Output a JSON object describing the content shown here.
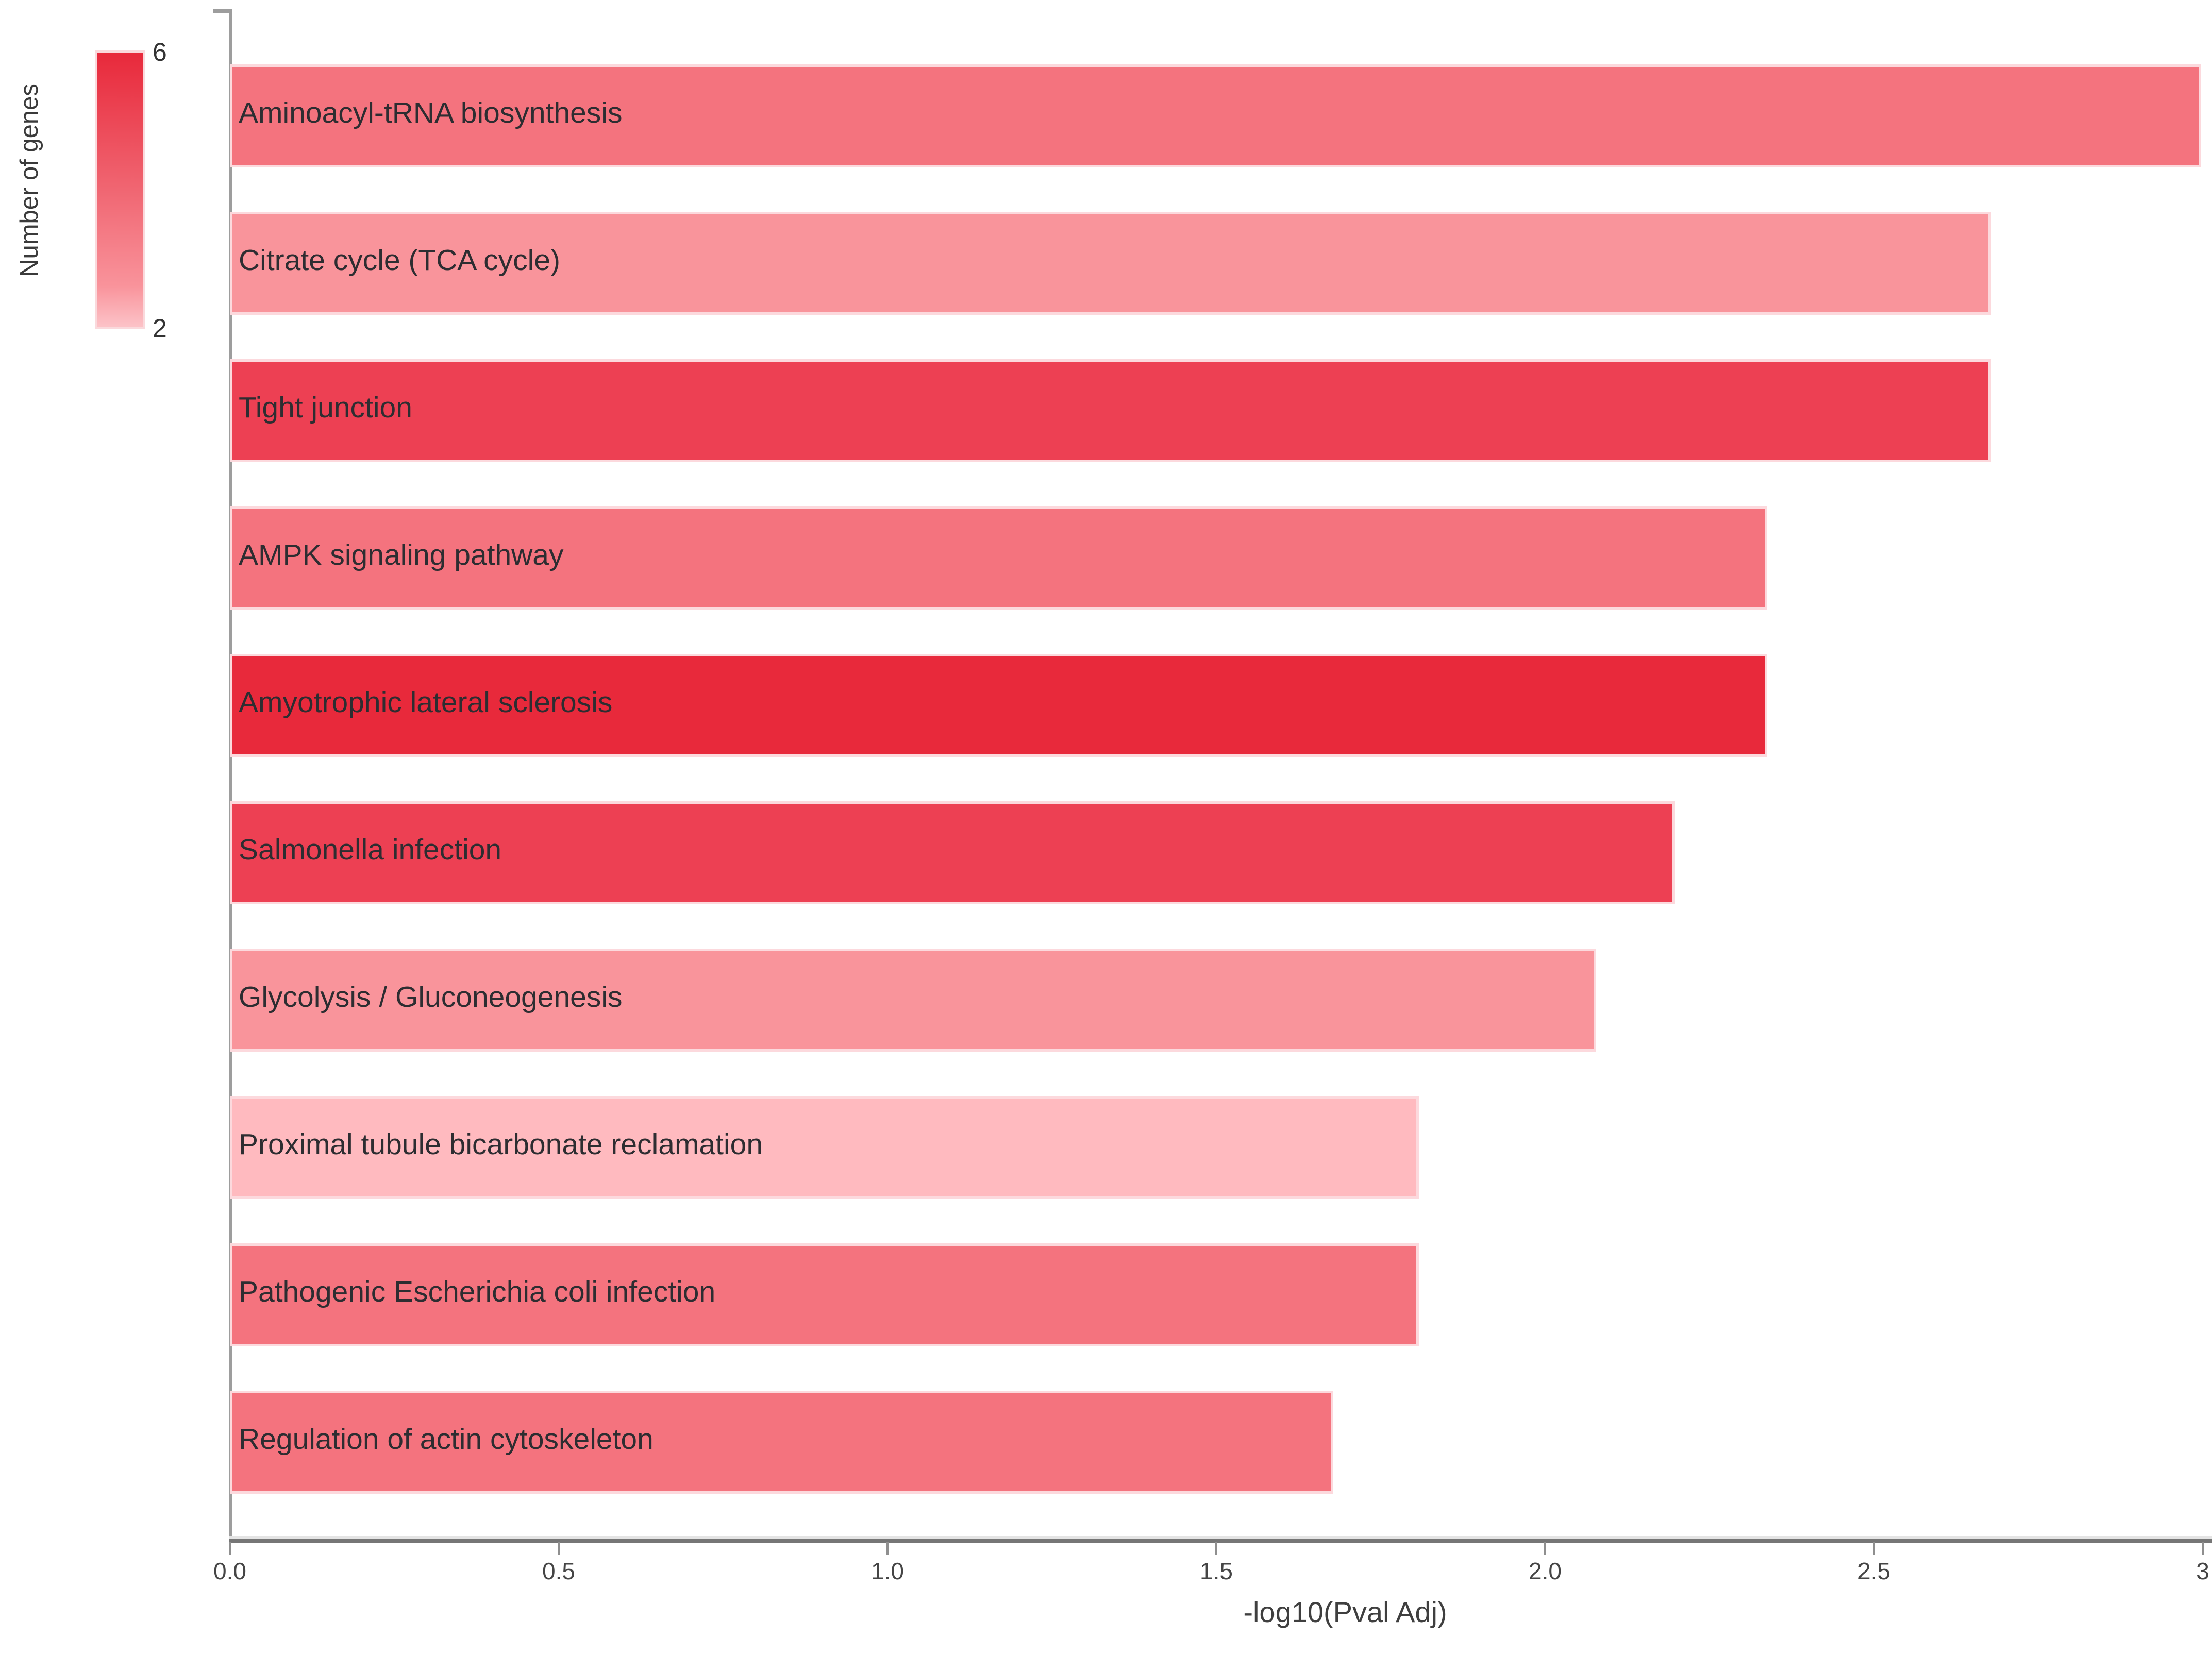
{
  "legend": {
    "title": "Number of genes",
    "max_label": "6",
    "min_label": "2",
    "gradient_top_color": "#e8293b",
    "gradient_bottom_color": "#fcc3c8"
  },
  "x_axis": {
    "title": "-log10(Pval Adj)",
    "tick_labels": [
      "0.0",
      "0.5",
      "1.0",
      "1.5",
      "2.0",
      "2.5",
      "3"
    ],
    "tick_values": [
      0,
      0.5,
      1,
      1.5,
      2,
      2.5,
      3
    ]
  },
  "chart_data": {
    "type": "bar",
    "orientation": "horizontal",
    "title": "",
    "xlabel": "-log10(Pval Adj)",
    "ylabel": "",
    "xlim": [
      0,
      3
    ],
    "grid": false,
    "legend_position": "top-left",
    "categories": [
      "Aminoacyl-tRNA biosynthesis",
      "Citrate cycle (TCA cycle)",
      "Tight junction",
      "AMPK signaling pathway",
      "Amyotrophic lateral sclerosis",
      "Salmonella infection",
      "Glycolysis / Gluconeogenesis",
      "Proximal tubule bicarbonate reclamation",
      "Pathogenic Escherichia coli infection",
      "Regulation of actin cytoskeleton"
    ],
    "values": [
      2.99,
      2.67,
      2.67,
      2.33,
      2.33,
      2.19,
      2.07,
      1.8,
      1.8,
      1.67
    ],
    "num_genes": [
      4,
      3,
      5,
      4,
      6,
      5,
      3,
      2,
      4,
      4
    ],
    "bar_colors": [
      "#f4737e",
      "#f9949b",
      "#ed4053",
      "#f4737e",
      "#e8293b",
      "#ed4053",
      "#f9949b",
      "#ffbabf",
      "#f4737e",
      "#f4737e"
    ],
    "color_scale": {
      "label": "Number of genes",
      "min": 2,
      "max": 6,
      "min_color": "#fcc3c8",
      "max_color": "#e8293b"
    }
  }
}
